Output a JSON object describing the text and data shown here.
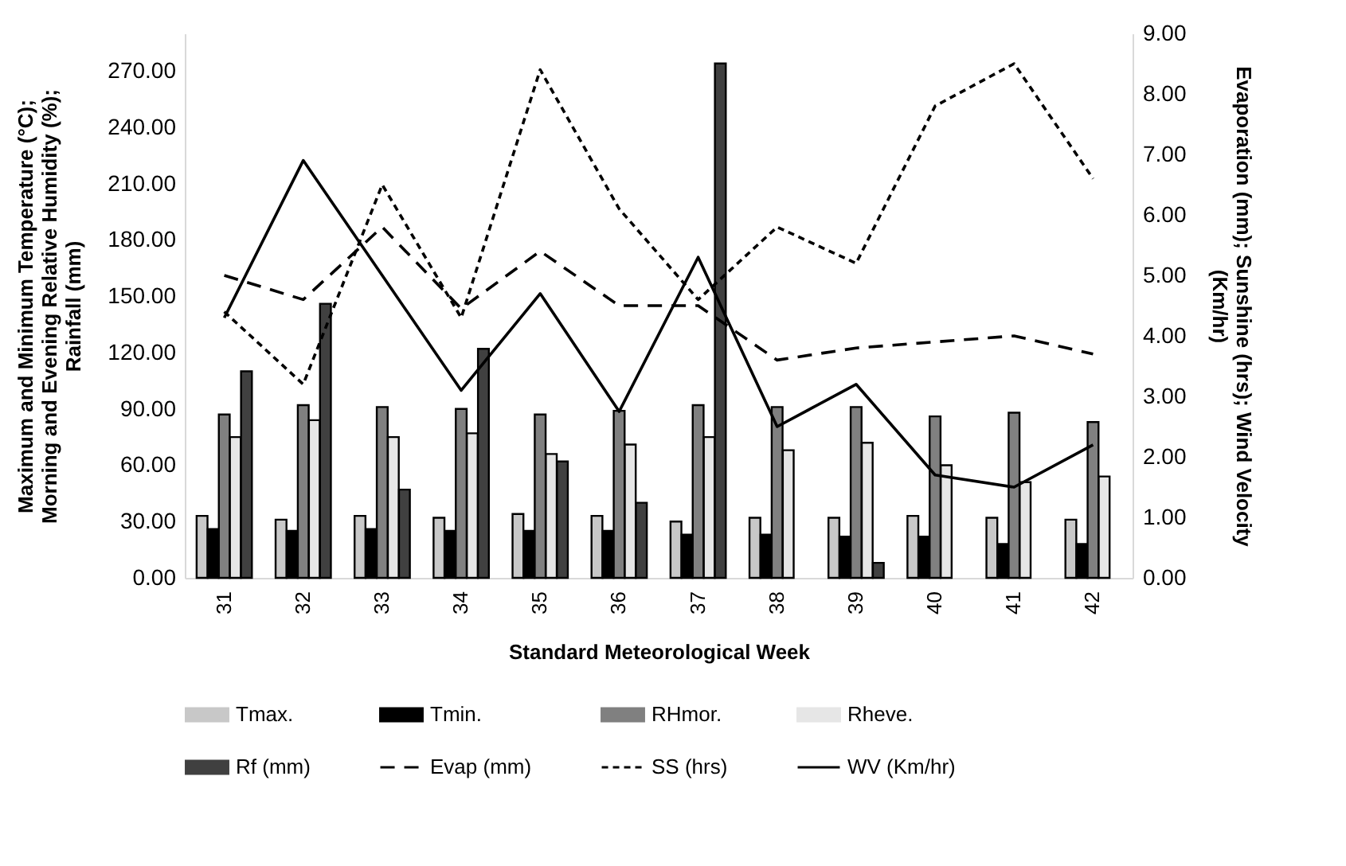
{
  "chart_data": {
    "type": "bar",
    "xlabel": "Standard Meteorological Week",
    "ylabel": "Maximum and Minimum Temperature (°C); Morning and Evening Relative Humidity (%); Rainfall (mm)",
    "y2label": "Evaporation (mm); Sunshine (hrs); Wind Velocity (Km/hr)",
    "categories": [
      "31",
      "32",
      "33",
      "34",
      "35",
      "36",
      "37",
      "38",
      "39",
      "40",
      "41",
      "42"
    ],
    "ylim": [
      0,
      290
    ],
    "yticks": [
      {
        "value": 0,
        "label": "0.00"
      },
      {
        "value": 30,
        "label": "30.00"
      },
      {
        "value": 60,
        "label": "60.00"
      },
      {
        "value": 90,
        "label": "90.00"
      },
      {
        "value": 120,
        "label": "120.00"
      },
      {
        "value": 150,
        "label": "150.00"
      },
      {
        "value": 180,
        "label": "180.00"
      },
      {
        "value": 210,
        "label": "210.00"
      },
      {
        "value": 240,
        "label": "240.00"
      },
      {
        "value": 270,
        "label": "270.00"
      }
    ],
    "y2lim": [
      0,
      9
    ],
    "y2ticks": [
      {
        "value": 0,
        "label": "0.00"
      },
      {
        "value": 1,
        "label": "1.00"
      },
      {
        "value": 2,
        "label": "2.00"
      },
      {
        "value": 3,
        "label": "3.00"
      },
      {
        "value": 4,
        "label": "4.00"
      },
      {
        "value": 5,
        "label": "5.00"
      },
      {
        "value": 6,
        "label": "6.00"
      },
      {
        "value": 7,
        "label": "7.00"
      },
      {
        "value": 8,
        "label": "8.00"
      },
      {
        "value": 9,
        "label": "9.00"
      }
    ],
    "legend": "bottom",
    "series": [
      {
        "name": "Tmax.",
        "color": "#c8c8c8",
        "values": [
          33,
          31,
          33,
          32,
          34,
          33,
          30,
          32,
          32,
          33,
          32,
          31
        ]
      },
      {
        "name": "Tmin.",
        "color": "#000000",
        "values": [
          26,
          25,
          26,
          25,
          25,
          25,
          23,
          23,
          22,
          22,
          18,
          18
        ]
      },
      {
        "name": "RHmor.",
        "color": "#808080",
        "values": [
          87,
          92,
          91,
          90,
          87,
          89,
          92,
          91,
          91,
          86,
          88,
          83
        ]
      },
      {
        "name": "Rheve.",
        "color": "#e6e6e6",
        "values": [
          75,
          84,
          75,
          77,
          66,
          71,
          75,
          68,
          72,
          60,
          51,
          54
        ]
      },
      {
        "name": "Rf (mm)",
        "color": "#404040",
        "values": [
          110,
          146,
          47,
          122,
          62,
          40,
          274,
          0,
          8,
          0,
          0,
          0
        ]
      },
      {
        "name": "Evap (mm)",
        "type": "line",
        "axis": "y2",
        "color": "#000000",
        "line_style": "dashed",
        "values": [
          5.0,
          4.6,
          5.8,
          4.45,
          5.4,
          4.5,
          4.5,
          3.6,
          3.8,
          3.9,
          4.0,
          3.7
        ]
      },
      {
        "name": "SS (hrs)",
        "type": "line",
        "axis": "y2",
        "color": "#000000",
        "line_style": "dotted",
        "values": [
          4.4,
          3.2,
          6.5,
          4.3,
          8.4,
          6.1,
          4.6,
          5.8,
          5.2,
          7.8,
          8.5,
          6.6
        ]
      },
      {
        "name": "WV (Km/hr)",
        "type": "line",
        "axis": "y2",
        "color": "#000000",
        "line_style": "solid",
        "values": [
          4.3,
          6.9,
          5.0,
          3.1,
          4.7,
          2.75,
          5.3,
          2.5,
          3.2,
          1.7,
          1.5,
          2.2
        ]
      }
    ]
  }
}
